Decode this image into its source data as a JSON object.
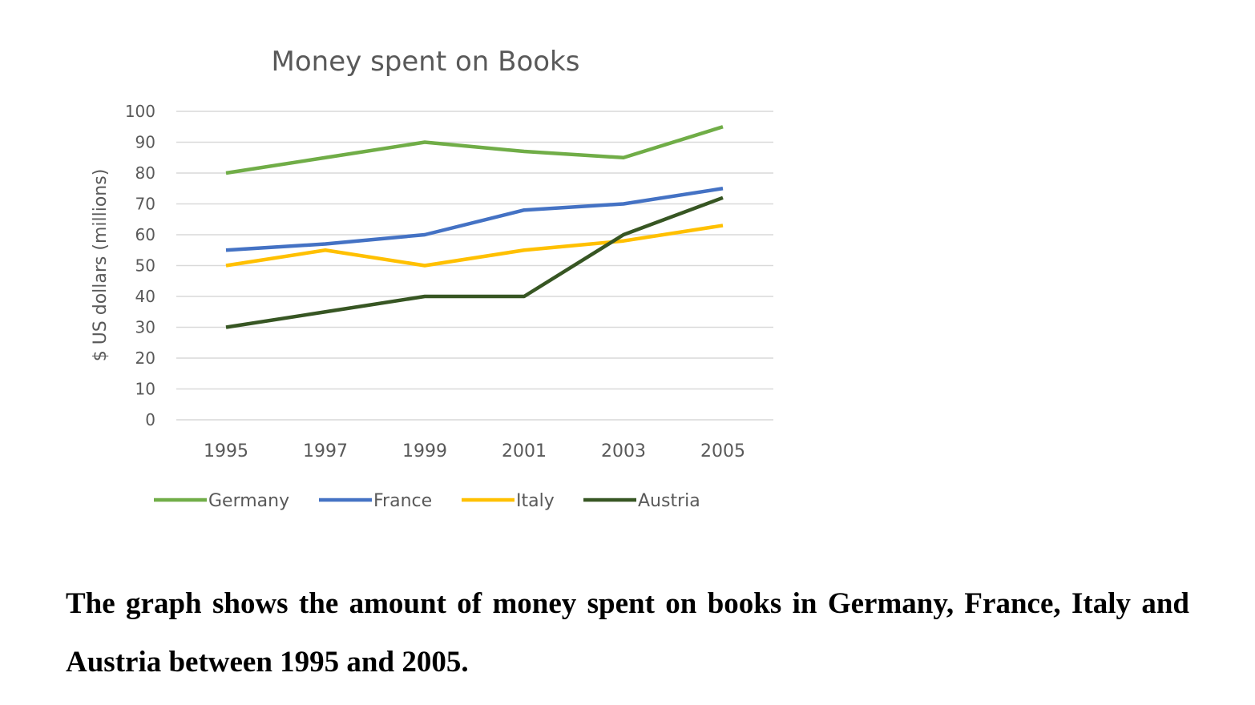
{
  "chart_data": {
    "type": "line",
    "title": "Money spent on Books",
    "xlabel": "",
    "ylabel": "$ US dollars (millions)",
    "x": [
      "1995",
      "1997",
      "1999",
      "2001",
      "2003",
      "2005"
    ],
    "ylim": [
      0,
      100
    ],
    "yticks": [
      0,
      10,
      20,
      30,
      40,
      50,
      60,
      70,
      80,
      90,
      100
    ],
    "grid": true,
    "legend": "bottom",
    "series": [
      {
        "name": "Germany",
        "color": "#70ad47",
        "values": [
          80,
          85,
          90,
          87,
          85,
          95
        ]
      },
      {
        "name": "France",
        "color": "#4472c4",
        "values": [
          55,
          57,
          60,
          68,
          70,
          75
        ]
      },
      {
        "name": "Italy",
        "color": "#ffc000",
        "values": [
          50,
          55,
          50,
          55,
          58,
          63
        ]
      },
      {
        "name": "Austria",
        "color": "#375623",
        "values": [
          30,
          35,
          40,
          40,
          60,
          72
        ]
      }
    ]
  },
  "caption": "The graph shows the amount of money spent on books in Germany, France, Italy and Austria between 1995 and 2005."
}
